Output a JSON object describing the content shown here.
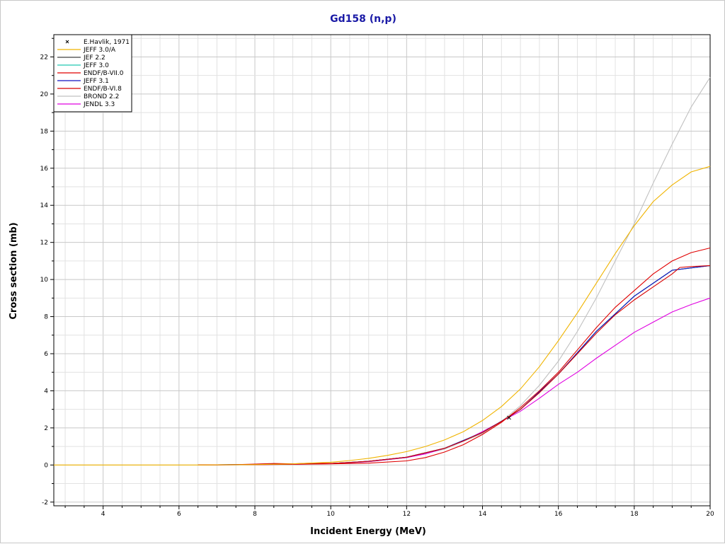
{
  "chart_data": {
    "type": "line",
    "title": "Gd158 (n,p)",
    "xlabel": "Incident Energy (MeV)",
    "ylabel": "Cross section (mb)",
    "xlim": [
      2.7,
      20
    ],
    "ylim": [
      -2.2,
      23.2
    ],
    "x_ticks": [
      4,
      6,
      8,
      10,
      12,
      14,
      16,
      18,
      20
    ],
    "y_ticks": [
      -2,
      0,
      2,
      4,
      6,
      8,
      10,
      12,
      14,
      16,
      18,
      20,
      22
    ],
    "grid": true,
    "legend_position": "top-left",
    "experimental": [
      {
        "name": "E.Havlik, 1971",
        "marker": "x",
        "color": "#000000",
        "points": [
          {
            "x": 14.7,
            "y": 2.55
          }
        ]
      }
    ],
    "series": [
      {
        "name": "JEFF 3.0/A",
        "color": "#f0b400",
        "x": [
          2.7,
          6.5,
          8,
          9,
          10,
          10.5,
          11,
          11.5,
          12,
          12.5,
          13,
          13.5,
          14,
          14.5,
          15,
          15.5,
          16,
          16.5,
          17,
          17.5,
          18,
          18.5,
          19,
          19.5,
          20
        ],
        "y": [
          0,
          0,
          0.02,
          0.06,
          0.15,
          0.24,
          0.36,
          0.52,
          0.72,
          1.0,
          1.35,
          1.8,
          2.4,
          3.15,
          4.1,
          5.3,
          6.7,
          8.2,
          9.8,
          11.4,
          12.9,
          14.2,
          15.1,
          15.8,
          16.1
        ]
      },
      {
        "name": "JEF 2.2",
        "color": "#404040",
        "x": [
          6.5,
          8,
          9,
          10,
          11,
          12,
          13,
          14,
          14.7,
          15,
          16,
          17,
          18,
          19,
          20
        ],
        "y": [
          0,
          0.03,
          0.05,
          0.08,
          0.2,
          0.42,
          0.9,
          1.75,
          2.6,
          3.0,
          4.9,
          7.2,
          9.1,
          10.5,
          10.75
        ]
      },
      {
        "name": "JEFF 3.0",
        "color": "#20c8b0",
        "x": [
          6.5,
          8,
          9,
          10,
          11,
          12,
          13,
          14,
          14.7,
          15,
          16,
          17,
          18,
          19,
          20
        ],
        "y": [
          0,
          0.03,
          0.05,
          0.08,
          0.2,
          0.42,
          0.9,
          1.75,
          2.6,
          3.0,
          4.9,
          7.2,
          9.1,
          10.5,
          10.75
        ]
      },
      {
        "name": "ENDF/B-VII.0",
        "color": "#e00000",
        "x": [
          6.5,
          8,
          9,
          10,
          11,
          12,
          12.5,
          13,
          13.5,
          14,
          14.5,
          15,
          15.5,
          16,
          16.5,
          17,
          17.5,
          18,
          18.5,
          19,
          19.5,
          20
        ],
        "y": [
          0,
          0.02,
          0.04,
          0.06,
          0.1,
          0.22,
          0.4,
          0.7,
          1.1,
          1.65,
          2.3,
          3.1,
          4.0,
          5.0,
          6.2,
          7.4,
          8.5,
          9.4,
          10.3,
          11.0,
          11.45,
          11.7
        ]
      },
      {
        "name": "JEFF 3.1",
        "color": "#1010c0",
        "x": [
          6.5,
          8,
          9,
          10,
          11,
          12,
          13,
          14,
          14.7,
          15,
          16,
          17,
          18,
          19,
          20
        ],
        "y": [
          0,
          0.03,
          0.05,
          0.08,
          0.2,
          0.42,
          0.9,
          1.75,
          2.6,
          3.0,
          4.9,
          7.2,
          9.1,
          10.5,
          10.75
        ]
      },
      {
        "name": "ENDF/B-VI.8",
        "color": "#d80000",
        "x": [
          6.5,
          7.5,
          8,
          8.5,
          9,
          9.5,
          10,
          11,
          12,
          13,
          13.5,
          14,
          14.5,
          15,
          15.5,
          16,
          16.5,
          17,
          17.5,
          18,
          18.5,
          19,
          19.2,
          19.5,
          20
        ],
        "y": [
          0,
          0.02,
          0.05,
          0.08,
          0.06,
          0.1,
          0.08,
          0.2,
          0.42,
          0.9,
          1.3,
          1.75,
          2.35,
          3.0,
          3.9,
          4.9,
          6.0,
          7.1,
          8.1,
          8.9,
          9.6,
          10.3,
          10.65,
          10.7,
          10.75
        ]
      },
      {
        "name": "BROND 2.2",
        "color": "#c0c0c0",
        "x": [
          6.5,
          8,
          9,
          10,
          11,
          12,
          13,
          14,
          14.5,
          15,
          15.5,
          16,
          16.5,
          17,
          17.5,
          18,
          18.5,
          19,
          19.5,
          20
        ],
        "y": [
          0,
          0.02,
          0.04,
          0.08,
          0.18,
          0.4,
          0.85,
          1.7,
          2.35,
          3.2,
          4.3,
          5.6,
          7.2,
          9.0,
          11.0,
          13.0,
          15.2,
          17.3,
          19.3,
          20.9
        ]
      },
      {
        "name": "JENDL 3.3",
        "color": "#e000e0",
        "x": [
          6.5,
          8,
          9,
          10,
          11,
          12,
          12.5,
          13,
          13.5,
          14,
          14.5,
          15,
          15.5,
          16,
          16.5,
          17,
          17.5,
          18,
          18.5,
          19,
          19.5,
          20
        ],
        "y": [
          0,
          0.02,
          0.04,
          0.07,
          0.18,
          0.4,
          0.6,
          0.9,
          1.3,
          1.8,
          2.35,
          2.9,
          3.6,
          4.35,
          5.0,
          5.75,
          6.45,
          7.15,
          7.7,
          8.25,
          8.65,
          9.0
        ]
      }
    ]
  }
}
